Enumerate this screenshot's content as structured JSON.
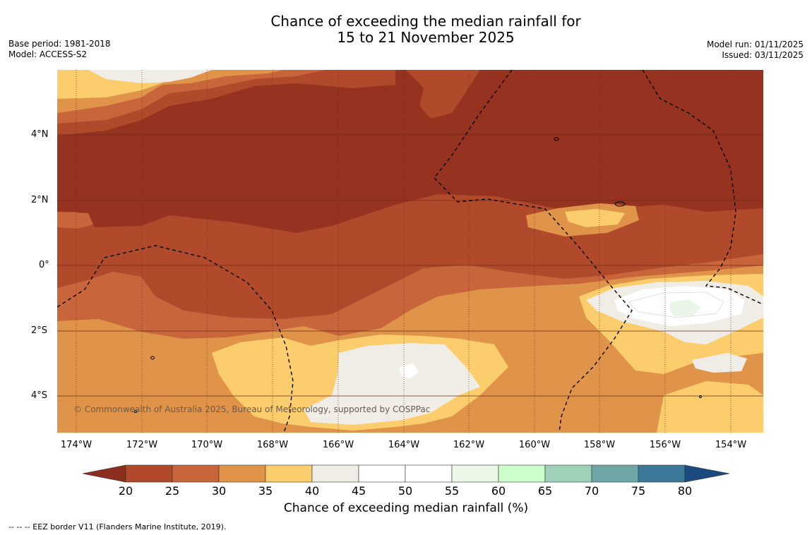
{
  "title": {
    "line1": "Chance of exceeding the median rainfall for",
    "line2": "15 to 21 November 2025"
  },
  "meta_left": {
    "base_period": "Base period: 1981-2018",
    "model": "Model: ACCESS-S2"
  },
  "meta_right": {
    "model_run": "Model run: 01/11/2025",
    "issued": "Issued: 03/11/2025"
  },
  "map": {
    "latitude_labels": [
      "4°N",
      "2°N",
      "0°",
      "2°S",
      "4°S"
    ],
    "longitude_labels": [
      "174°W",
      "172°W",
      "170°W",
      "168°W",
      "166°W",
      "164°W",
      "162°W",
      "160°W",
      "158°W",
      "156°W",
      "154°W"
    ],
    "copyright": "© Commonwealth of Australia 2025, Bureau of Meteorology, supported by COSPPac"
  },
  "colorbar": {
    "title": "Chance of exceeding median rainfall (%)",
    "tick_labels": [
      "20",
      "25",
      "30",
      "35",
      "40",
      "45",
      "50",
      "55",
      "60",
      "65",
      "70",
      "75",
      "80"
    ],
    "colors": {
      "below_20": "#8b2e1c",
      "20_25": "#b04a2a",
      "25_30": "#c8653a",
      "30_35": "#e0944a",
      "35_40": "#fccd6c",
      "40_45": "#f0ece6",
      "45_50": "#ffffff",
      "50_55": "#ffffff",
      "55_60": "#eef6ea",
      "60_65": "#ccffcc",
      "65_70": "#9ed1b8",
      "70_75": "#6fa6a6",
      "75_80": "#3c7898",
      "above_80": "#1a4a80"
    }
  },
  "footer": {
    "eez_note": "--  --  -- EEZ border V11 (Flanders Marine Institute, 2019)."
  }
}
